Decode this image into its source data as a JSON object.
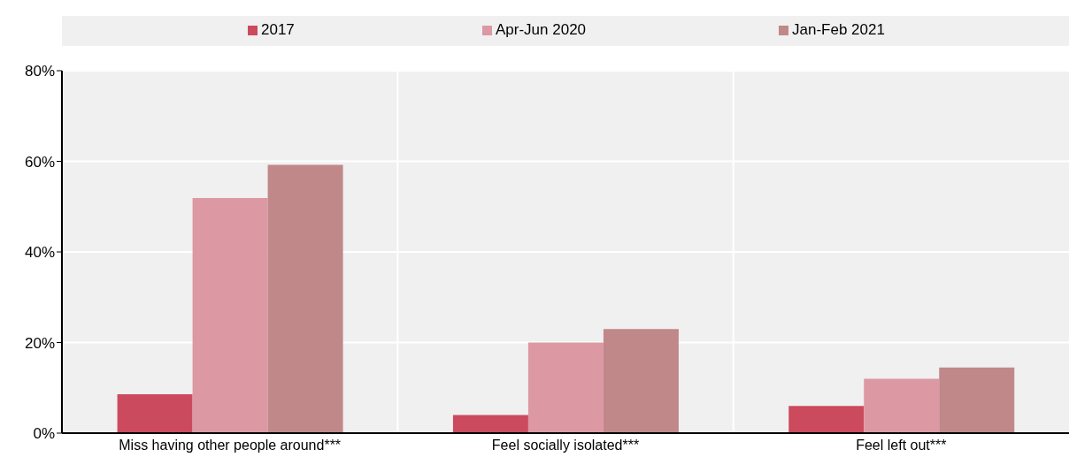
{
  "chart_data": {
    "type": "bar",
    "categories": [
      "Miss having other people around***",
      "Feel socially isolated***",
      "Feel left out***"
    ],
    "series": [
      {
        "name": "2017",
        "color": "#cc4a5e",
        "values": [
          8.6,
          4.0,
          6.0
        ]
      },
      {
        "name": "Apr-Jun 2020",
        "color": "#dc98a3",
        "values": [
          51.9,
          20.0,
          12.0
        ]
      },
      {
        "name": "Jan-Feb 2021",
        "color": "#c08889",
        "values": [
          59.2,
          23.0,
          14.5
        ]
      }
    ],
    "ylim": [
      0,
      80
    ],
    "yticks": [
      {
        "value": 0,
        "label": "0%"
      },
      {
        "value": 20,
        "label": "20%"
      },
      {
        "value": 40,
        "label": "40%"
      },
      {
        "value": 60,
        "label": "60%"
      },
      {
        "value": 80,
        "label": "80%"
      }
    ],
    "grid": true,
    "legend": "top"
  }
}
